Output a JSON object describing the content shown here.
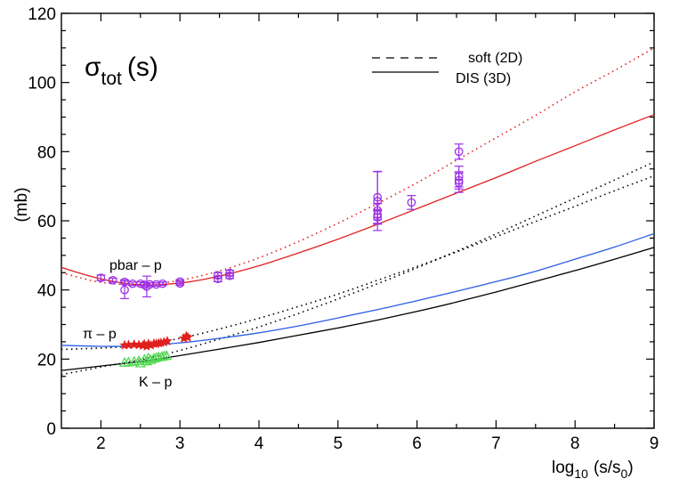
{
  "chart_data": {
    "type": "scatter",
    "title": "σ",
    "title_sub": "tot",
    "title_arg": "(s)",
    "ylabel": "(mb)",
    "xlabel_prefix": "log",
    "xlabel_sub": "10",
    "xlabel_mid": "(s/s",
    "xlabel_sub2": "0",
    "xlabel_end": ")",
    "xlim": [
      1.5,
      9
    ],
    "ylim": [
      0,
      120
    ],
    "xticks": [
      2,
      3,
      4,
      5,
      6,
      7,
      8,
      9
    ],
    "yticks": [
      0,
      20,
      40,
      60,
      80,
      100,
      120
    ],
    "legend": {
      "position": "top-right",
      "entries": [
        {
          "label": "soft  (2D)",
          "style": "dashed"
        },
        {
          "label": "DIS  (3D)",
          "style": "solid"
        }
      ]
    },
    "annotations": [
      {
        "text": "pbar – p",
        "x": 2.7,
        "y": 47
      },
      {
        "text": "π – p",
        "x": 2.0,
        "y": 27
      },
      {
        "text": "K – p",
        "x": 2.75,
        "y": 14
      }
    ],
    "colors": {
      "pbarp": "#e0201e",
      "pip": "#2a5ee6",
      "kp": "#000000",
      "pbarp_data": "#9b30e8",
      "pip_data": "#e0201e",
      "kp_data": "#50d850"
    },
    "series": [
      {
        "name": "pbar-p soft (2D)",
        "style": "dotted",
        "color": "#e0201e",
        "x": [
          1.5,
          2.0,
          2.5,
          3.0,
          3.5,
          4.0,
          4.5,
          5.0,
          5.5,
          6.0,
          6.5,
          7.0,
          7.5,
          8.0,
          8.5,
          9.0
        ],
        "y": [
          45,
          42.2,
          41.6,
          42.8,
          45.5,
          49.3,
          54.0,
          59.3,
          65.0,
          71.0,
          77.5,
          84.0,
          90.5,
          97.3,
          103.5,
          110
        ]
      },
      {
        "name": "pbar-p DIS (3D)",
        "style": "solid",
        "color": "#e0201e",
        "x": [
          1.5,
          2.0,
          2.5,
          3.0,
          3.5,
          4.0,
          4.5,
          5.0,
          5.5,
          6.0,
          6.5,
          7.0,
          7.5,
          8.0,
          8.5,
          9.0
        ],
        "y": [
          46.5,
          43.2,
          41.5,
          42.0,
          44.0,
          47.0,
          50.7,
          54.7,
          59.0,
          63.5,
          68.0,
          72.5,
          77.2,
          81.7,
          86.3,
          90.7
        ]
      },
      {
        "name": "pi-p soft (2D)",
        "style": "dotted",
        "color": "#000000",
        "x": [
          1.5,
          2.0,
          2.5,
          3.0,
          3.5,
          4.0,
          4.5,
          5.0,
          5.5,
          6.0,
          6.5,
          7.0,
          7.5,
          8.0,
          8.5,
          9.0
        ],
        "y": [
          22.8,
          23.2,
          24.0,
          26.0,
          28.7,
          31.8,
          35.2,
          38.8,
          42.8,
          46.8,
          51.0,
          55.4,
          59.8,
          64.2,
          68.7,
          73.0
        ]
      },
      {
        "name": "K-p soft (2D)",
        "style": "dotted",
        "color": "#000000",
        "x": [
          1.5,
          2.0,
          2.5,
          3.0,
          3.5,
          4.0,
          4.5,
          5.0,
          5.5,
          6.0,
          6.5,
          7.0,
          7.5,
          8.0,
          8.5,
          9.0
        ],
        "y": [
          15.5,
          17.7,
          19.8,
          22.5,
          25.8,
          29.3,
          33.2,
          37.4,
          41.8,
          46.4,
          51.2,
          56.2,
          61.4,
          66.6,
          71.8,
          77.0
        ]
      },
      {
        "name": "pi-p DIS (3D)",
        "style": "solid",
        "color": "#2a5ee6",
        "x": [
          1.5,
          2.0,
          2.5,
          3.0,
          3.5,
          4.0,
          4.5,
          5.0,
          5.5,
          6.0,
          6.5,
          7.0,
          7.5,
          8.0,
          8.5,
          9.0
        ],
        "y": [
          24.0,
          23.7,
          23.8,
          24.7,
          26.0,
          27.6,
          29.6,
          31.9,
          34.3,
          36.9,
          39.6,
          42.4,
          45.4,
          48.9,
          52.4,
          56.3
        ]
      },
      {
        "name": "K-p DIS (3D)",
        "style": "solid",
        "color": "#000000",
        "x": [
          1.5,
          2.0,
          2.5,
          3.0,
          3.5,
          4.0,
          4.5,
          5.0,
          5.5,
          6.0,
          6.5,
          7.0,
          7.5,
          8.0,
          8.5,
          9.0
        ],
        "y": [
          16.7,
          18.0,
          19.3,
          21.0,
          22.9,
          24.8,
          26.9,
          29.0,
          31.3,
          33.8,
          36.5,
          39.4,
          42.5,
          45.6,
          48.9,
          52.3
        ]
      }
    ],
    "data_points": [
      {
        "name": "pbar-p data",
        "marker": "circle",
        "color": "#9b30e8",
        "points": [
          {
            "x": 2.0,
            "y": 43.5,
            "err": 0.8
          },
          {
            "x": 2.15,
            "y": 42.8,
            "err": 0.6
          },
          {
            "x": 2.3,
            "y": 42.3,
            "err": 0.6
          },
          {
            "x": 2.3,
            "y": 40.0,
            "err": 2.5
          },
          {
            "x": 2.4,
            "y": 41.8,
            "err": 0.5
          },
          {
            "x": 2.5,
            "y": 41.8,
            "err": 0.5
          },
          {
            "x": 2.55,
            "y": 41.5,
            "err": 0.6
          },
          {
            "x": 2.58,
            "y": 41.0,
            "err": 3.0
          },
          {
            "x": 2.62,
            "y": 41.6,
            "err": 0.5
          },
          {
            "x": 2.7,
            "y": 41.6,
            "err": 0.5
          },
          {
            "x": 2.78,
            "y": 41.8,
            "err": 0.5
          },
          {
            "x": 3.0,
            "y": 42.4,
            "err": 0.5
          },
          {
            "x": 3.0,
            "y": 41.9,
            "err": 0.5
          },
          {
            "x": 3.48,
            "y": 44.2,
            "err": 0.8
          },
          {
            "x": 3.48,
            "y": 43.2,
            "err": 0.8
          },
          {
            "x": 3.63,
            "y": 44.9,
            "err": 0.8
          },
          {
            "x": 3.63,
            "y": 44.1,
            "err": 0.8
          },
          {
            "x": 5.5,
            "y": 66.8,
            "err": 7.5
          },
          {
            "x": 5.5,
            "y": 65.7,
            "err": 8.5
          },
          {
            "x": 5.5,
            "y": 63.0,
            "err": 2.0
          },
          {
            "x": 5.5,
            "y": 61.8,
            "err": 1.5
          },
          {
            "x": 5.5,
            "y": 61.0,
            "err": 2.0
          },
          {
            "x": 5.93,
            "y": 65.3,
            "err": 2.0
          },
          {
            "x": 6.53,
            "y": 80.0,
            "err": 2.2
          },
          {
            "x": 6.53,
            "y": 72.8,
            "err": 3.0
          },
          {
            "x": 6.53,
            "y": 71.7,
            "err": 2.5
          },
          {
            "x": 6.53,
            "y": 71.0,
            "err": 2.8
          }
        ]
      },
      {
        "name": "pi-p data",
        "marker": "star",
        "color": "#e0201e",
        "points": [
          {
            "x": 2.3,
            "y": 24.0
          },
          {
            "x": 2.35,
            "y": 24.1
          },
          {
            "x": 2.42,
            "y": 24.2
          },
          {
            "x": 2.48,
            "y": 24.1
          },
          {
            "x": 2.53,
            "y": 23.9
          },
          {
            "x": 2.55,
            "y": 24.3
          },
          {
            "x": 2.58,
            "y": 23.7
          },
          {
            "x": 2.6,
            "y": 24.4
          },
          {
            "x": 2.63,
            "y": 24.0
          },
          {
            "x": 2.67,
            "y": 24.5
          },
          {
            "x": 2.7,
            "y": 24.4
          },
          {
            "x": 2.73,
            "y": 24.6
          },
          {
            "x": 2.76,
            "y": 24.7
          },
          {
            "x": 2.8,
            "y": 24.9
          },
          {
            "x": 2.84,
            "y": 25.2
          },
          {
            "x": 3.05,
            "y": 26.0
          },
          {
            "x": 3.08,
            "y": 26.6
          },
          {
            "x": 3.1,
            "y": 26.3
          }
        ]
      },
      {
        "name": "K-p data",
        "marker": "triangle",
        "color": "#50d850",
        "points": [
          {
            "x": 2.3,
            "y": 19.0
          },
          {
            "x": 2.35,
            "y": 19.1
          },
          {
            "x": 2.42,
            "y": 19.3
          },
          {
            "x": 2.48,
            "y": 19.5
          },
          {
            "x": 2.5,
            "y": 18.8
          },
          {
            "x": 2.55,
            "y": 19.9
          },
          {
            "x": 2.58,
            "y": 19.4
          },
          {
            "x": 2.6,
            "y": 20.3
          },
          {
            "x": 2.63,
            "y": 19.8
          },
          {
            "x": 2.67,
            "y": 20.2
          },
          {
            "x": 2.7,
            "y": 20.4
          },
          {
            "x": 2.73,
            "y": 20.6
          },
          {
            "x": 2.77,
            "y": 20.7
          },
          {
            "x": 2.8,
            "y": 20.9
          },
          {
            "x": 2.83,
            "y": 21.0
          }
        ]
      }
    ]
  }
}
